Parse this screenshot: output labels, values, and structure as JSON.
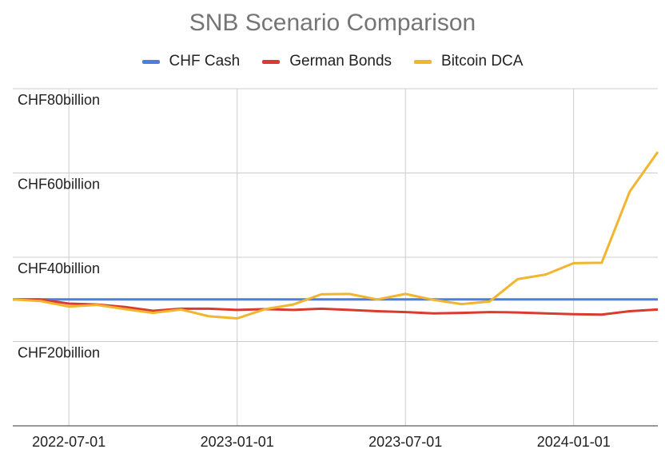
{
  "chart_data": {
    "type": "line",
    "title": "SNB Scenario Comparison",
    "xlabel": "",
    "ylabel": "",
    "x_ticks": [
      "2022-07-01",
      "2023-01-01",
      "2023-07-01",
      "2024-01-01"
    ],
    "y_ticks": [
      "CHF20billion",
      "CHF40billion",
      "CHF60billion",
      "CHF80billion"
    ],
    "ylim": [
      0,
      80
    ],
    "grid": true,
    "legend_position": "top",
    "x": [
      "2022-05-01",
      "2022-06-01",
      "2022-07-01",
      "2022-08-01",
      "2022-09-01",
      "2022-10-01",
      "2022-11-01",
      "2022-12-01",
      "2023-01-01",
      "2023-02-01",
      "2023-03-01",
      "2023-04-01",
      "2023-05-01",
      "2023-06-01",
      "2023-07-01",
      "2023-08-01",
      "2023-09-01",
      "2023-10-01",
      "2023-11-01",
      "2023-12-01",
      "2024-01-01",
      "2024-02-01",
      "2024-03-01",
      "2024-04-01"
    ],
    "series": [
      {
        "name": "CHF Cash",
        "color": "#4a7fe0",
        "values": [
          30,
          30,
          30,
          30,
          30,
          30,
          30,
          30,
          30,
          30,
          30,
          30,
          30,
          30,
          30,
          30,
          30,
          30,
          30,
          30,
          30,
          30,
          30,
          30
        ]
      },
      {
        "name": "German Bonds",
        "color": "#d93b2f",
        "values": [
          30,
          30,
          29,
          28.8,
          28.2,
          27.3,
          27.8,
          27.8,
          27.5,
          27.7,
          27.5,
          27.8,
          27.5,
          27.2,
          27,
          26.7,
          26.8,
          27,
          26.9,
          26.7,
          26.5,
          26.4,
          27.2,
          27.6
        ]
      },
      {
        "name": "Bitcoin DCA",
        "color": "#f1b52f",
        "values": [
          30,
          29.6,
          28.3,
          28.7,
          27.7,
          26.8,
          27.6,
          26,
          25.5,
          27.7,
          28.8,
          31.2,
          31.3,
          30,
          31.3,
          29.9,
          28.9,
          29.5,
          34.8,
          35.9,
          38.6,
          38.7,
          55.6,
          65
        ]
      }
    ]
  }
}
